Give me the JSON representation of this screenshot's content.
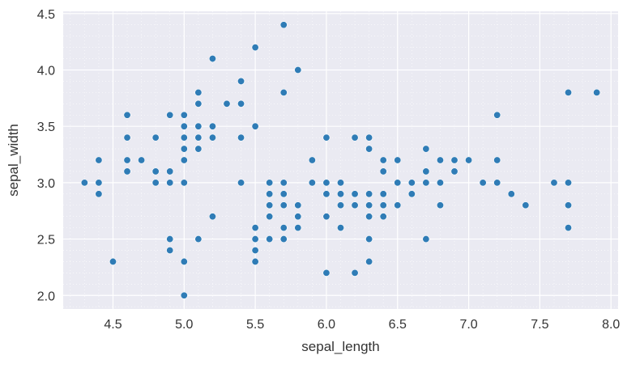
{
  "chart_data": {
    "type": "scatter",
    "title": "",
    "xlabel": "sepal_length",
    "ylabel": "sepal_width",
    "xlim": [
      4.15,
      8.05
    ],
    "ylim": [
      1.88,
      4.52
    ],
    "x_ticks": [
      4.5,
      5.0,
      5.5,
      6.0,
      6.5,
      7.0,
      7.5,
      8.0
    ],
    "x_tick_labels": [
      "4.5",
      "5.0",
      "5.5",
      "6.0",
      "6.5",
      "7.0",
      "7.5",
      "8.0"
    ],
    "y_ticks": [
      2.0,
      2.5,
      3.0,
      3.5,
      4.0,
      4.5
    ],
    "y_tick_labels": [
      "2.0",
      "2.5",
      "3.0",
      "3.5",
      "4.0",
      "4.5"
    ],
    "grid": true,
    "marker_color": "#2f7cb6",
    "background_color": "#eaeaf2",
    "grid_color": "#ffffff",
    "series": [
      {
        "points": [
          [
            4.3,
            3.0
          ],
          [
            4.4,
            3.2
          ],
          [
            4.4,
            3.0
          ],
          [
            4.4,
            2.9
          ],
          [
            4.5,
            2.3
          ],
          [
            4.6,
            3.6
          ],
          [
            4.6,
            3.4
          ],
          [
            4.6,
            3.2
          ],
          [
            4.6,
            3.1
          ],
          [
            4.7,
            3.2
          ],
          [
            4.8,
            3.4
          ],
          [
            4.8,
            3.1
          ],
          [
            4.8,
            3.0
          ],
          [
            4.9,
            3.6
          ],
          [
            4.9,
            3.1
          ],
          [
            4.9,
            3.0
          ],
          [
            4.9,
            2.5
          ],
          [
            4.9,
            2.4
          ],
          [
            5.0,
            3.6
          ],
          [
            5.0,
            3.5
          ],
          [
            5.0,
            3.4
          ],
          [
            5.0,
            3.3
          ],
          [
            5.0,
            3.2
          ],
          [
            5.0,
            3.0
          ],
          [
            5.0,
            2.3
          ],
          [
            5.0,
            2.0
          ],
          [
            5.1,
            3.8
          ],
          [
            5.1,
            3.7
          ],
          [
            5.1,
            3.5
          ],
          [
            5.1,
            3.4
          ],
          [
            5.1,
            3.3
          ],
          [
            5.1,
            2.5
          ],
          [
            5.2,
            4.1
          ],
          [
            5.2,
            3.5
          ],
          [
            5.2,
            3.4
          ],
          [
            5.2,
            2.7
          ],
          [
            5.3,
            3.7
          ],
          [
            5.4,
            3.9
          ],
          [
            5.4,
            3.7
          ],
          [
            5.4,
            3.4
          ],
          [
            5.4,
            3.0
          ],
          [
            5.5,
            4.2
          ],
          [
            5.5,
            3.5
          ],
          [
            5.5,
            2.6
          ],
          [
            5.5,
            2.5
          ],
          [
            5.5,
            2.4
          ],
          [
            5.5,
            2.3
          ],
          [
            5.6,
            3.0
          ],
          [
            5.6,
            2.9
          ],
          [
            5.6,
            2.8
          ],
          [
            5.6,
            2.7
          ],
          [
            5.6,
            2.5
          ],
          [
            5.7,
            4.4
          ],
          [
            5.7,
            3.8
          ],
          [
            5.7,
            3.0
          ],
          [
            5.7,
            2.9
          ],
          [
            5.7,
            2.8
          ],
          [
            5.7,
            2.6
          ],
          [
            5.7,
            2.5
          ],
          [
            5.8,
            4.0
          ],
          [
            5.8,
            2.8
          ],
          [
            5.8,
            2.7
          ],
          [
            5.8,
            2.6
          ],
          [
            5.9,
            3.2
          ],
          [
            5.9,
            3.0
          ],
          [
            6.0,
            3.4
          ],
          [
            6.0,
            3.0
          ],
          [
            6.0,
            2.9
          ],
          [
            6.0,
            2.7
          ],
          [
            6.0,
            2.2
          ],
          [
            6.1,
            3.0
          ],
          [
            6.1,
            2.9
          ],
          [
            6.1,
            2.8
          ],
          [
            6.1,
            2.6
          ],
          [
            6.2,
            3.4
          ],
          [
            6.2,
            2.9
          ],
          [
            6.2,
            2.8
          ],
          [
            6.2,
            2.2
          ],
          [
            6.3,
            3.4
          ],
          [
            6.3,
            3.3
          ],
          [
            6.3,
            2.9
          ],
          [
            6.3,
            2.8
          ],
          [
            6.3,
            2.7
          ],
          [
            6.3,
            2.5
          ],
          [
            6.3,
            2.3
          ],
          [
            6.4,
            3.2
          ],
          [
            6.4,
            3.1
          ],
          [
            6.4,
            2.9
          ],
          [
            6.4,
            2.8
          ],
          [
            6.4,
            2.7
          ],
          [
            6.5,
            3.2
          ],
          [
            6.5,
            3.0
          ],
          [
            6.5,
            2.8
          ],
          [
            6.6,
            3.0
          ],
          [
            6.6,
            2.9
          ],
          [
            6.7,
            3.3
          ],
          [
            6.7,
            3.1
          ],
          [
            6.7,
            3.0
          ],
          [
            6.7,
            2.5
          ],
          [
            6.8,
            3.2
          ],
          [
            6.8,
            3.0
          ],
          [
            6.8,
            2.8
          ],
          [
            6.9,
            3.2
          ],
          [
            6.9,
            3.1
          ],
          [
            7.0,
            3.2
          ],
          [
            7.1,
            3.0
          ],
          [
            7.2,
            3.6
          ],
          [
            7.2,
            3.2
          ],
          [
            7.2,
            3.0
          ],
          [
            7.3,
            2.9
          ],
          [
            7.4,
            2.8
          ],
          [
            7.6,
            3.0
          ],
          [
            7.7,
            3.8
          ],
          [
            7.7,
            3.0
          ],
          [
            7.7,
            2.8
          ],
          [
            7.7,
            2.6
          ],
          [
            7.9,
            3.8
          ]
        ]
      }
    ]
  }
}
